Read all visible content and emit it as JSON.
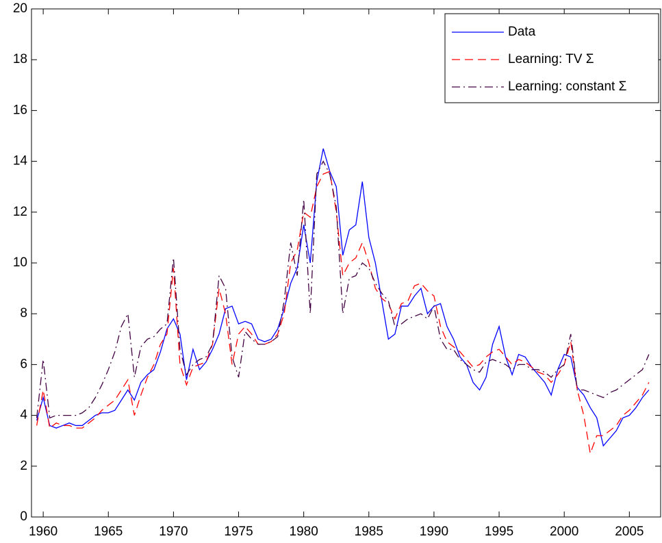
{
  "chart_data": {
    "type": "line",
    "x": [
      1959.5,
      1960,
      1960.5,
      1961,
      1961.5,
      1962,
      1962.5,
      1963,
      1963.5,
      1964,
      1964.5,
      1965,
      1965.5,
      1966,
      1966.5,
      1967,
      1967.5,
      1968,
      1968.5,
      1969,
      1969.5,
      1970,
      1970.5,
      1971,
      1971.5,
      1972,
      1972.5,
      1973,
      1973.5,
      1974,
      1974.5,
      1975,
      1975.5,
      1976,
      1976.5,
      1977,
      1977.5,
      1978,
      1978.5,
      1979,
      1979.5,
      1980,
      1980.5,
      1981,
      1981.5,
      1982,
      1982.5,
      1983,
      1983.5,
      1984,
      1984.5,
      1985,
      1985.5,
      1986,
      1986.5,
      1987,
      1987.5,
      1988,
      1988.5,
      1989,
      1989.5,
      1990,
      1990.5,
      1991,
      1991.5,
      1992,
      1992.5,
      1993,
      1993.5,
      1994,
      1994.5,
      1995,
      1995.5,
      1996,
      1996.5,
      1997,
      1997.5,
      1998,
      1998.5,
      1999,
      1999.5,
      2000,
      2000.5,
      2001,
      2001.5,
      2002,
      2002.5,
      2003,
      2003.5,
      2004,
      2004.5,
      2005,
      2005.5,
      2006,
      2006.5
    ],
    "series": [
      {
        "name": "Data",
        "color": "#0000ff",
        "style": "solid",
        "values": [
          3.8,
          4.7,
          3.6,
          3.5,
          3.6,
          3.7,
          3.6,
          3.6,
          3.8,
          4.0,
          4.1,
          4.1,
          4.2,
          4.6,
          5.0,
          4.6,
          5.3,
          5.6,
          5.8,
          6.5,
          7.4,
          7.8,
          7.2,
          5.4,
          6.6,
          5.8,
          6.1,
          6.6,
          7.2,
          8.2,
          8.3,
          7.6,
          7.7,
          7.6,
          7.0,
          6.9,
          7.0,
          7.4,
          8.2,
          9.2,
          9.8,
          11.5,
          10.0,
          13.2,
          14.5,
          13.6,
          13.0,
          10.3,
          11.3,
          11.5,
          13.2,
          11.0,
          10.0,
          8.5,
          7.0,
          7.2,
          8.3,
          8.3,
          8.7,
          9.0,
          8.0,
          8.3,
          8.4,
          7.5,
          7.0,
          6.3,
          6.0,
          5.3,
          5.0,
          5.5,
          6.8,
          7.5,
          6.3,
          5.6,
          6.4,
          6.3,
          5.9,
          5.6,
          5.3,
          4.8,
          5.8,
          6.4,
          6.3,
          5.1,
          4.8,
          4.3,
          3.9,
          2.8,
          3.1,
          3.4,
          3.9,
          4.0,
          4.3,
          4.7,
          5.0
        ]
      },
      {
        "name": "Learning: TV Σ",
        "color": "#ff0000",
        "style": "dashed",
        "values": [
          3.6,
          5.0,
          3.5,
          3.7,
          3.6,
          3.6,
          3.5,
          3.5,
          3.7,
          3.9,
          4.2,
          4.4,
          4.6,
          5.0,
          5.4,
          4.0,
          4.8,
          5.5,
          6.0,
          6.8,
          7.2,
          9.8,
          6.0,
          5.2,
          5.9,
          6.0,
          6.1,
          6.8,
          9.0,
          8.0,
          6.0,
          7.2,
          7.5,
          7.2,
          6.8,
          6.8,
          6.9,
          7.2,
          8.0,
          10.0,
          10.5,
          12.0,
          11.8,
          13.0,
          13.5,
          13.6,
          12.0,
          9.5,
          10.0,
          10.2,
          10.8,
          10.0,
          9.0,
          8.6,
          8.4,
          7.8,
          8.4,
          8.5,
          9.1,
          9.2,
          8.9,
          8.7,
          7.5,
          6.9,
          6.7,
          6.5,
          6.2,
          5.9,
          6.0,
          6.3,
          6.5,
          6.6,
          6.3,
          6.0,
          6.2,
          6.1,
          5.9,
          5.7,
          5.6,
          5.3,
          5.6,
          6.0,
          6.9,
          5.0,
          4.0,
          2.5,
          3.2,
          3.2,
          3.4,
          3.6,
          4.0,
          4.2,
          4.5,
          4.8,
          5.3
        ]
      },
      {
        "name": "Learning: constant Σ",
        "color": "#400040",
        "style": "dashdot",
        "values": [
          3.9,
          6.2,
          3.9,
          4.0,
          4.0,
          4.0,
          4.0,
          4.1,
          4.3,
          4.7,
          5.2,
          5.8,
          6.5,
          7.5,
          8.0,
          5.5,
          6.7,
          7.0,
          7.1,
          7.4,
          7.6,
          10.2,
          6.6,
          5.6,
          6.0,
          6.2,
          6.3,
          6.8,
          9.5,
          9.0,
          6.3,
          5.5,
          7.3,
          7.0,
          6.8,
          6.8,
          6.9,
          7.1,
          8.5,
          10.8,
          9.5,
          12.5,
          8.0,
          13.5,
          14.0,
          13.5,
          12.2,
          8.0,
          9.4,
          9.5,
          10.0,
          9.8,
          9.2,
          8.8,
          8.5,
          7.5,
          7.6,
          7.8,
          7.9,
          8.0,
          7.8,
          8.3,
          7.0,
          6.6,
          6.6,
          6.2,
          6.0,
          5.8,
          5.7,
          6.1,
          6.2,
          6.1,
          6.0,
          5.8,
          6.0,
          6.0,
          5.8,
          5.8,
          5.7,
          5.5,
          5.8,
          6.0,
          7.2,
          5.0,
          5.0,
          4.9,
          4.8,
          4.7,
          4.9,
          5.0,
          5.2,
          5.4,
          5.6,
          5.8,
          6.4
        ]
      }
    ],
    "xlim": [
      1959.1,
      2007.4
    ],
    "xticks": [
      1960,
      1965,
      1970,
      1975,
      1980,
      1985,
      1990,
      1995,
      2000,
      2005
    ],
    "ylim": [
      0,
      20
    ],
    "yticks": [
      0,
      2,
      4,
      6,
      8,
      10,
      12,
      14,
      16,
      18,
      20
    ],
    "grid": false,
    "legend": "upper right"
  }
}
